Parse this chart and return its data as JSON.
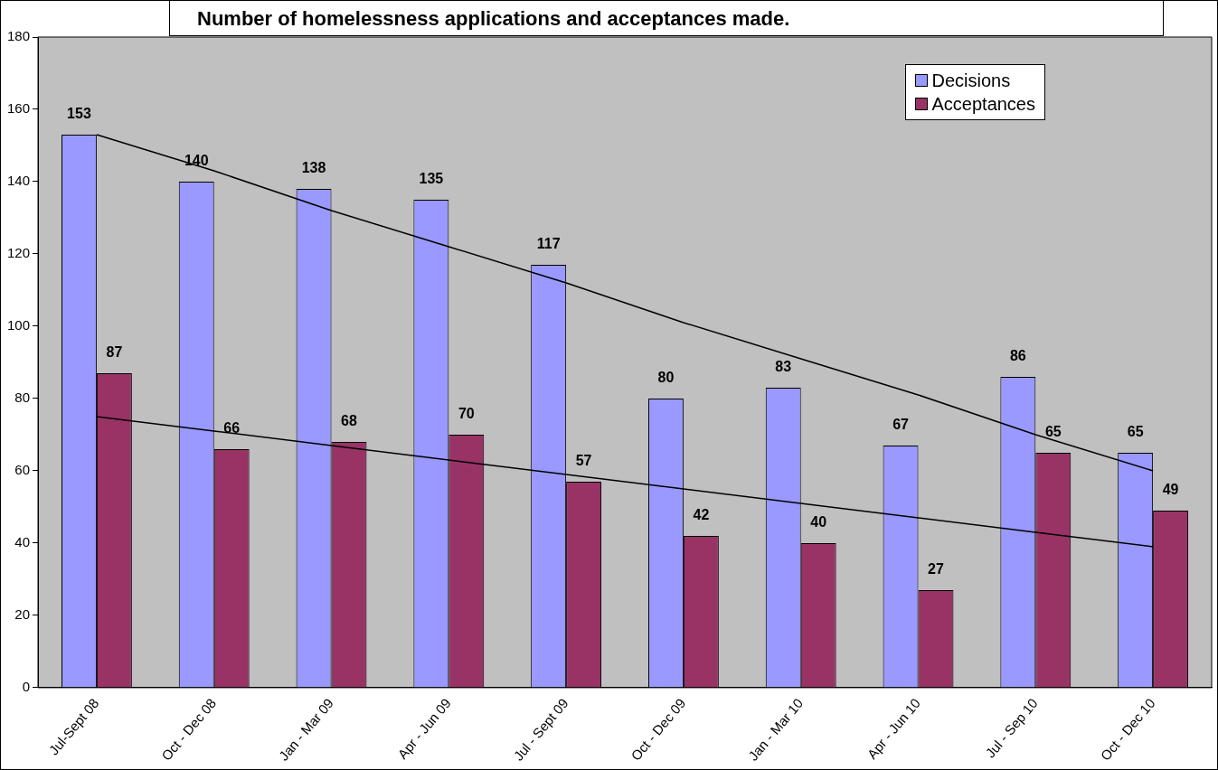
{
  "chart_data": {
    "type": "bar",
    "title": "Number of homelessness applications and acceptances made.",
    "categories": [
      "Jul-Sept 08",
      "Oct - Dec 08",
      "Jan - Mar 09",
      "Apr - Jun 09",
      "Jul - Sept 09",
      "Oct - Dec 09",
      "Jan - Mar 10",
      "Apr - Jun 10",
      "Jul - Sep 10",
      "Oct - Dec 10"
    ],
    "series": [
      {
        "name": "Decisions",
        "color": "#9999ff",
        "values": [
          153,
          140,
          138,
          135,
          117,
          80,
          83,
          67,
          86,
          65
        ],
        "value_labels": [
          "153",
          "140",
          "138",
          "135",
          "117",
          "80",
          "83",
          "67",
          "86",
          "65"
        ]
      },
      {
        "name": "Acceptances",
        "color": "#993366",
        "values": [
          87,
          66,
          68,
          70,
          57,
          42,
          40,
          27,
          65,
          49
        ],
        "value_labels": [
          "87",
          "66",
          "68",
          "70",
          "57",
          "42",
          "40",
          "27",
          "65",
          "49"
        ]
      },
      {
        "type": "line",
        "color": "#000000",
        "values": [
          153,
          143,
          132,
          122,
          112,
          101,
          91,
          81,
          70,
          60
        ]
      },
      {
        "type": "line",
        "color": "#000000",
        "values": [
          75,
          71,
          67,
          63,
          59,
          55,
          51,
          47,
          43,
          39
        ]
      }
    ],
    "ylim": [
      0,
      180
    ],
    "yticks": [
      0,
      20,
      40,
      60,
      80,
      100,
      120,
      140,
      160,
      180
    ],
    "grid": false,
    "legend": "top right",
    "marker": "none",
    "line_style": "solid"
  }
}
